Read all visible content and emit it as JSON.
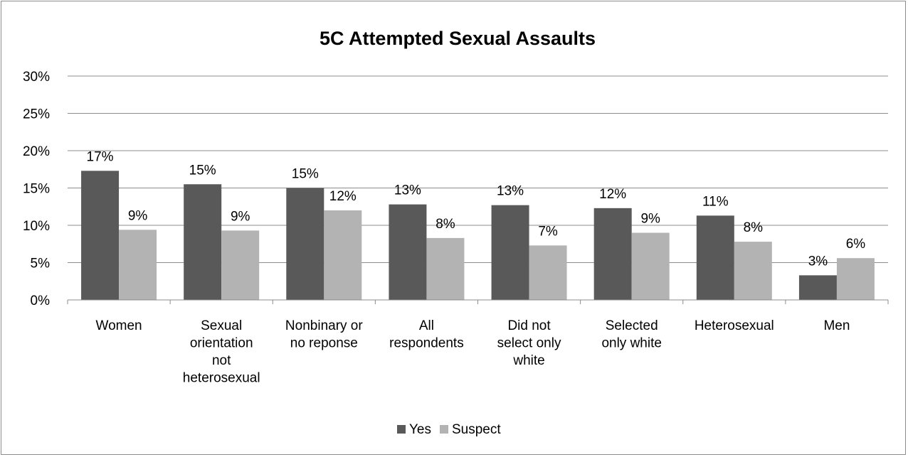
{
  "chart_data": {
    "type": "bar",
    "title": "5C Attempted Sexual Assaults",
    "xlabel": "",
    "ylabel": "",
    "ylim": [
      0,
      30
    ],
    "y_ticks": [
      "0%",
      "5%",
      "10%",
      "15%",
      "20%",
      "25%",
      "30%"
    ],
    "y_tick_values": [
      0,
      5,
      10,
      15,
      20,
      25,
      30
    ],
    "grid": true,
    "legend_position": "bottom",
    "categories": [
      [
        "Women"
      ],
      [
        "Sexual",
        "orientation",
        "not",
        "heterosexual"
      ],
      [
        "Nonbinary or",
        "no reponse"
      ],
      [
        "All",
        "respondents"
      ],
      [
        "Did not",
        "select only",
        "white"
      ],
      [
        "Selected",
        "only white"
      ],
      [
        "Heterosexual"
      ],
      [
        "Men"
      ]
    ],
    "series": [
      {
        "name": "Yes",
        "color": "#595959",
        "values": [
          17.3,
          15.5,
          15.0,
          12.8,
          12.7,
          12.3,
          11.3,
          3.3
        ],
        "labels": [
          "17%",
          "15%",
          "15%",
          "13%",
          "13%",
          "12%",
          "11%",
          "3%"
        ]
      },
      {
        "name": "Suspect",
        "color": "#b3b3b3",
        "values": [
          9.4,
          9.3,
          12.0,
          8.3,
          7.3,
          9.0,
          7.8,
          5.6
        ],
        "labels": [
          "9%",
          "9%",
          "12%",
          "8%",
          "7%",
          "9%",
          "8%",
          "6%"
        ]
      }
    ]
  }
}
